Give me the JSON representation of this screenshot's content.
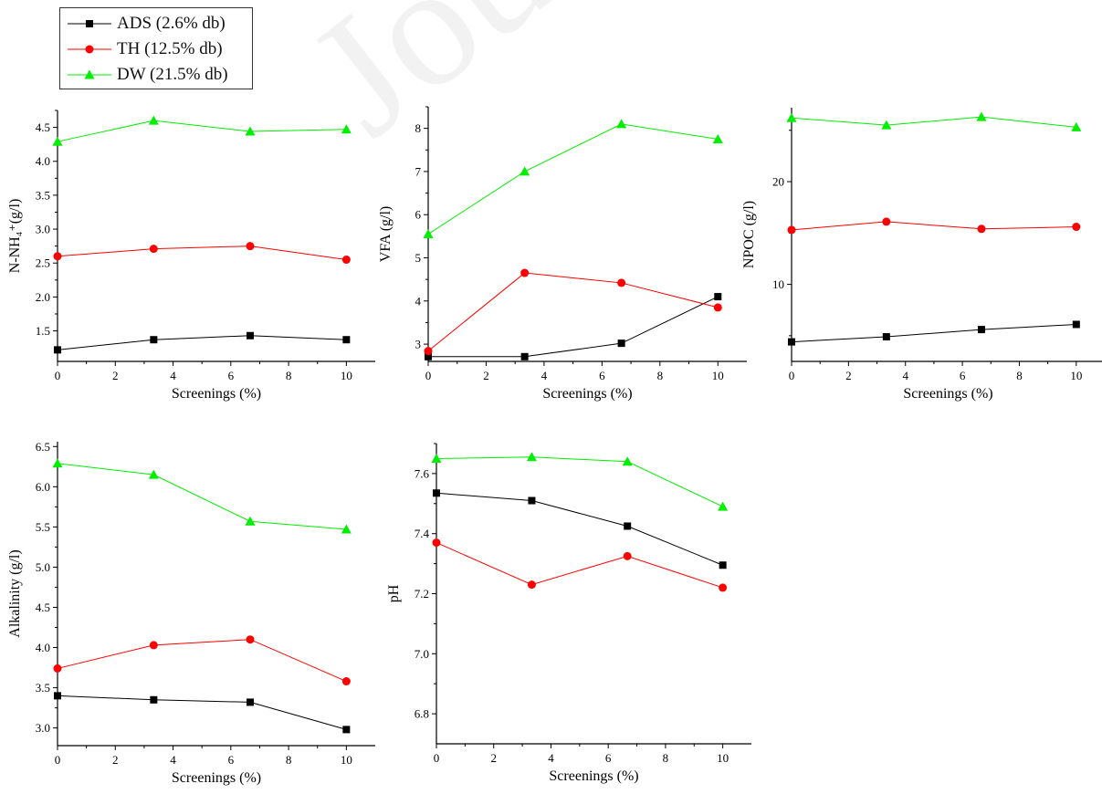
{
  "watermark": "Journal Pre-proof",
  "colors": {
    "ADS": "#000000",
    "TH": "#ff0000",
    "DW": "#00ee00"
  },
  "legend": [
    {
      "key": "ADS",
      "label": "ADS (2.6% db)",
      "marker": "square"
    },
    {
      "key": "TH",
      "label": "TH (12.5% db)",
      "marker": "circle"
    },
    {
      "key": "DW",
      "label": "DW (21.5% db)",
      "marker": "triangle"
    }
  ],
  "chart_data": [
    {
      "type": "line",
      "ylabel": "N-NH₄⁺(g/l)",
      "xlabel": "Screenings (%)",
      "xlim": [
        0,
        11
      ],
      "ylim": [
        1.05,
        4.75
      ],
      "xticks": [
        0,
        2,
        4,
        6,
        8,
        10
      ],
      "yticks": [
        1.5,
        2.0,
        2.5,
        3.0,
        3.5,
        4.0,
        4.5
      ],
      "x": [
        0,
        3.33,
        6.67,
        10
      ],
      "series": [
        {
          "key": "ADS",
          "values": [
            1.22,
            1.37,
            1.43,
            1.37
          ]
        },
        {
          "key": "TH",
          "values": [
            2.6,
            2.71,
            2.75,
            2.55
          ]
        },
        {
          "key": "DW",
          "values": [
            4.29,
            4.6,
            4.44,
            4.47
          ]
        }
      ]
    },
    {
      "type": "line",
      "ylabel": "VFA (g/l)",
      "xlabel": "Screenings (%)",
      "xlim": [
        0,
        11
      ],
      "ylim": [
        2.6,
        8.5
      ],
      "xticks": [
        0,
        2,
        4,
        6,
        8,
        10
      ],
      "yticks": [
        3,
        4,
        5,
        6,
        7,
        8
      ],
      "x": [
        0,
        3.33,
        6.67,
        10
      ],
      "series": [
        {
          "key": "ADS",
          "values": [
            2.71,
            2.71,
            3.02,
            4.1
          ]
        },
        {
          "key": "TH",
          "values": [
            2.84,
            4.65,
            4.42,
            3.85
          ]
        },
        {
          "key": "DW",
          "values": [
            5.55,
            7.0,
            8.1,
            7.75
          ]
        }
      ]
    },
    {
      "type": "line",
      "ylabel": "NPOC (g/l)",
      "xlabel": "Screenings (%)",
      "xlim": [
        0,
        11
      ],
      "ylim": [
        2.5,
        27.2
      ],
      "xticks": [
        0,
        2,
        4,
        6,
        8,
        10
      ],
      "yticks": [
        10,
        20
      ],
      "x": [
        0,
        3.33,
        6.67,
        10
      ],
      "series": [
        {
          "key": "ADS",
          "values": [
            4.4,
            4.9,
            5.6,
            6.1
          ]
        },
        {
          "key": "TH",
          "values": [
            15.3,
            16.1,
            15.4,
            15.6
          ]
        },
        {
          "key": "DW",
          "values": [
            26.2,
            25.5,
            26.3,
            25.3
          ]
        }
      ]
    },
    {
      "type": "line",
      "ylabel": "Alkalinity (g/l)",
      "xlabel": "Screenings (%)",
      "xlim": [
        0,
        11
      ],
      "ylim": [
        2.78,
        6.56
      ],
      "xticks": [
        0,
        2,
        4,
        6,
        8,
        10
      ],
      "yticks": [
        3.0,
        3.5,
        4.0,
        4.5,
        5.0,
        5.5,
        6.0,
        6.5
      ],
      "x": [
        0,
        3.33,
        6.67,
        10
      ],
      "series": [
        {
          "key": "ADS",
          "values": [
            3.4,
            3.35,
            3.32,
            2.98
          ]
        },
        {
          "key": "TH",
          "values": [
            3.74,
            4.03,
            4.1,
            3.58
          ]
        },
        {
          "key": "DW",
          "values": [
            6.29,
            6.15,
            5.57,
            5.47
          ]
        }
      ]
    },
    {
      "type": "line",
      "ylabel": "pH",
      "xlabel": "Screenings (%)",
      "xlim": [
        0,
        11
      ],
      "ylim": [
        6.7,
        7.7
      ],
      "xticks": [
        0,
        2,
        4,
        6,
        8,
        10
      ],
      "yticks": [
        6.8,
        7.0,
        7.2,
        7.4,
        7.6
      ],
      "x": [
        0,
        3.33,
        6.67,
        10
      ],
      "series": [
        {
          "key": "ADS",
          "values": [
            7.535,
            7.51,
            7.425,
            7.295
          ]
        },
        {
          "key": "TH",
          "values": [
            7.37,
            7.23,
            7.325,
            7.22
          ]
        },
        {
          "key": "DW",
          "values": [
            7.65,
            7.655,
            7.64,
            7.49
          ]
        }
      ]
    }
  ]
}
